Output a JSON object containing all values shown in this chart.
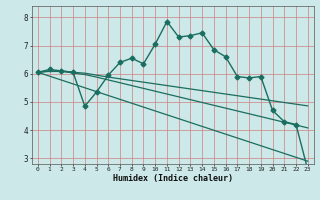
{
  "xlabel": "Humidex (Indice chaleur)",
  "bg_color": "#cce8e8",
  "grid_color": "#d08080",
  "line_color": "#1a6e60",
  "xlim": [
    -0.5,
    23.5
  ],
  "ylim": [
    2.8,
    8.4
  ],
  "xticks": [
    0,
    1,
    2,
    3,
    4,
    5,
    6,
    7,
    8,
    9,
    10,
    11,
    12,
    13,
    14,
    15,
    16,
    17,
    18,
    19,
    20,
    21,
    22,
    23
  ],
  "yticks": [
    3,
    4,
    5,
    6,
    7,
    8
  ],
  "series": [
    {
      "x": [
        0,
        1,
        2,
        3,
        4,
        5,
        6,
        7,
        8,
        9,
        10,
        11,
        12,
        13,
        14,
        15,
        16,
        17,
        18,
        19,
        20,
        21,
        22,
        23
      ],
      "y": [
        6.05,
        6.15,
        6.1,
        6.05,
        4.85,
        5.35,
        5.95,
        6.4,
        6.55,
        6.35,
        7.05,
        7.85,
        7.3,
        7.35,
        7.45,
        6.85,
        6.6,
        5.9,
        5.85,
        5.9,
        4.7,
        4.3,
        4.2,
        2.6
      ],
      "marker": "D",
      "ms": 2.5,
      "lw": 1.0
    },
    {
      "x": [
        0,
        1,
        2,
        3,
        4,
        5,
        6,
        7,
        8,
        9,
        10,
        11,
        12,
        13,
        14,
        15,
        16,
        17,
        18,
        19,
        20,
        21,
        22,
        23
      ],
      "y": [
        6.05,
        6.1,
        6.1,
        6.05,
        6.02,
        5.95,
        5.88,
        5.82,
        5.76,
        5.7,
        5.64,
        5.58,
        5.52,
        5.46,
        5.4,
        5.34,
        5.28,
        5.22,
        5.16,
        5.1,
        5.04,
        4.98,
        4.92,
        4.86
      ],
      "marker": null,
      "ms": 0,
      "lw": 0.9
    },
    {
      "x": [
        0,
        1,
        2,
        3,
        4,
        5,
        6,
        7,
        8,
        9,
        10,
        11,
        12,
        13,
        14,
        15,
        16,
        17,
        18,
        19,
        20,
        21,
        22,
        23
      ],
      "y": [
        6.05,
        6.08,
        6.08,
        6.03,
        5.97,
        5.88,
        5.78,
        5.68,
        5.58,
        5.48,
        5.38,
        5.28,
        5.18,
        5.08,
        4.98,
        4.88,
        4.78,
        4.68,
        4.58,
        4.48,
        4.38,
        4.28,
        4.18,
        4.08
      ],
      "marker": null,
      "ms": 0,
      "lw": 0.9
    },
    {
      "x": [
        0,
        23
      ],
      "y": [
        6.05,
        2.9
      ],
      "marker": null,
      "ms": 0,
      "lw": 0.9
    }
  ]
}
